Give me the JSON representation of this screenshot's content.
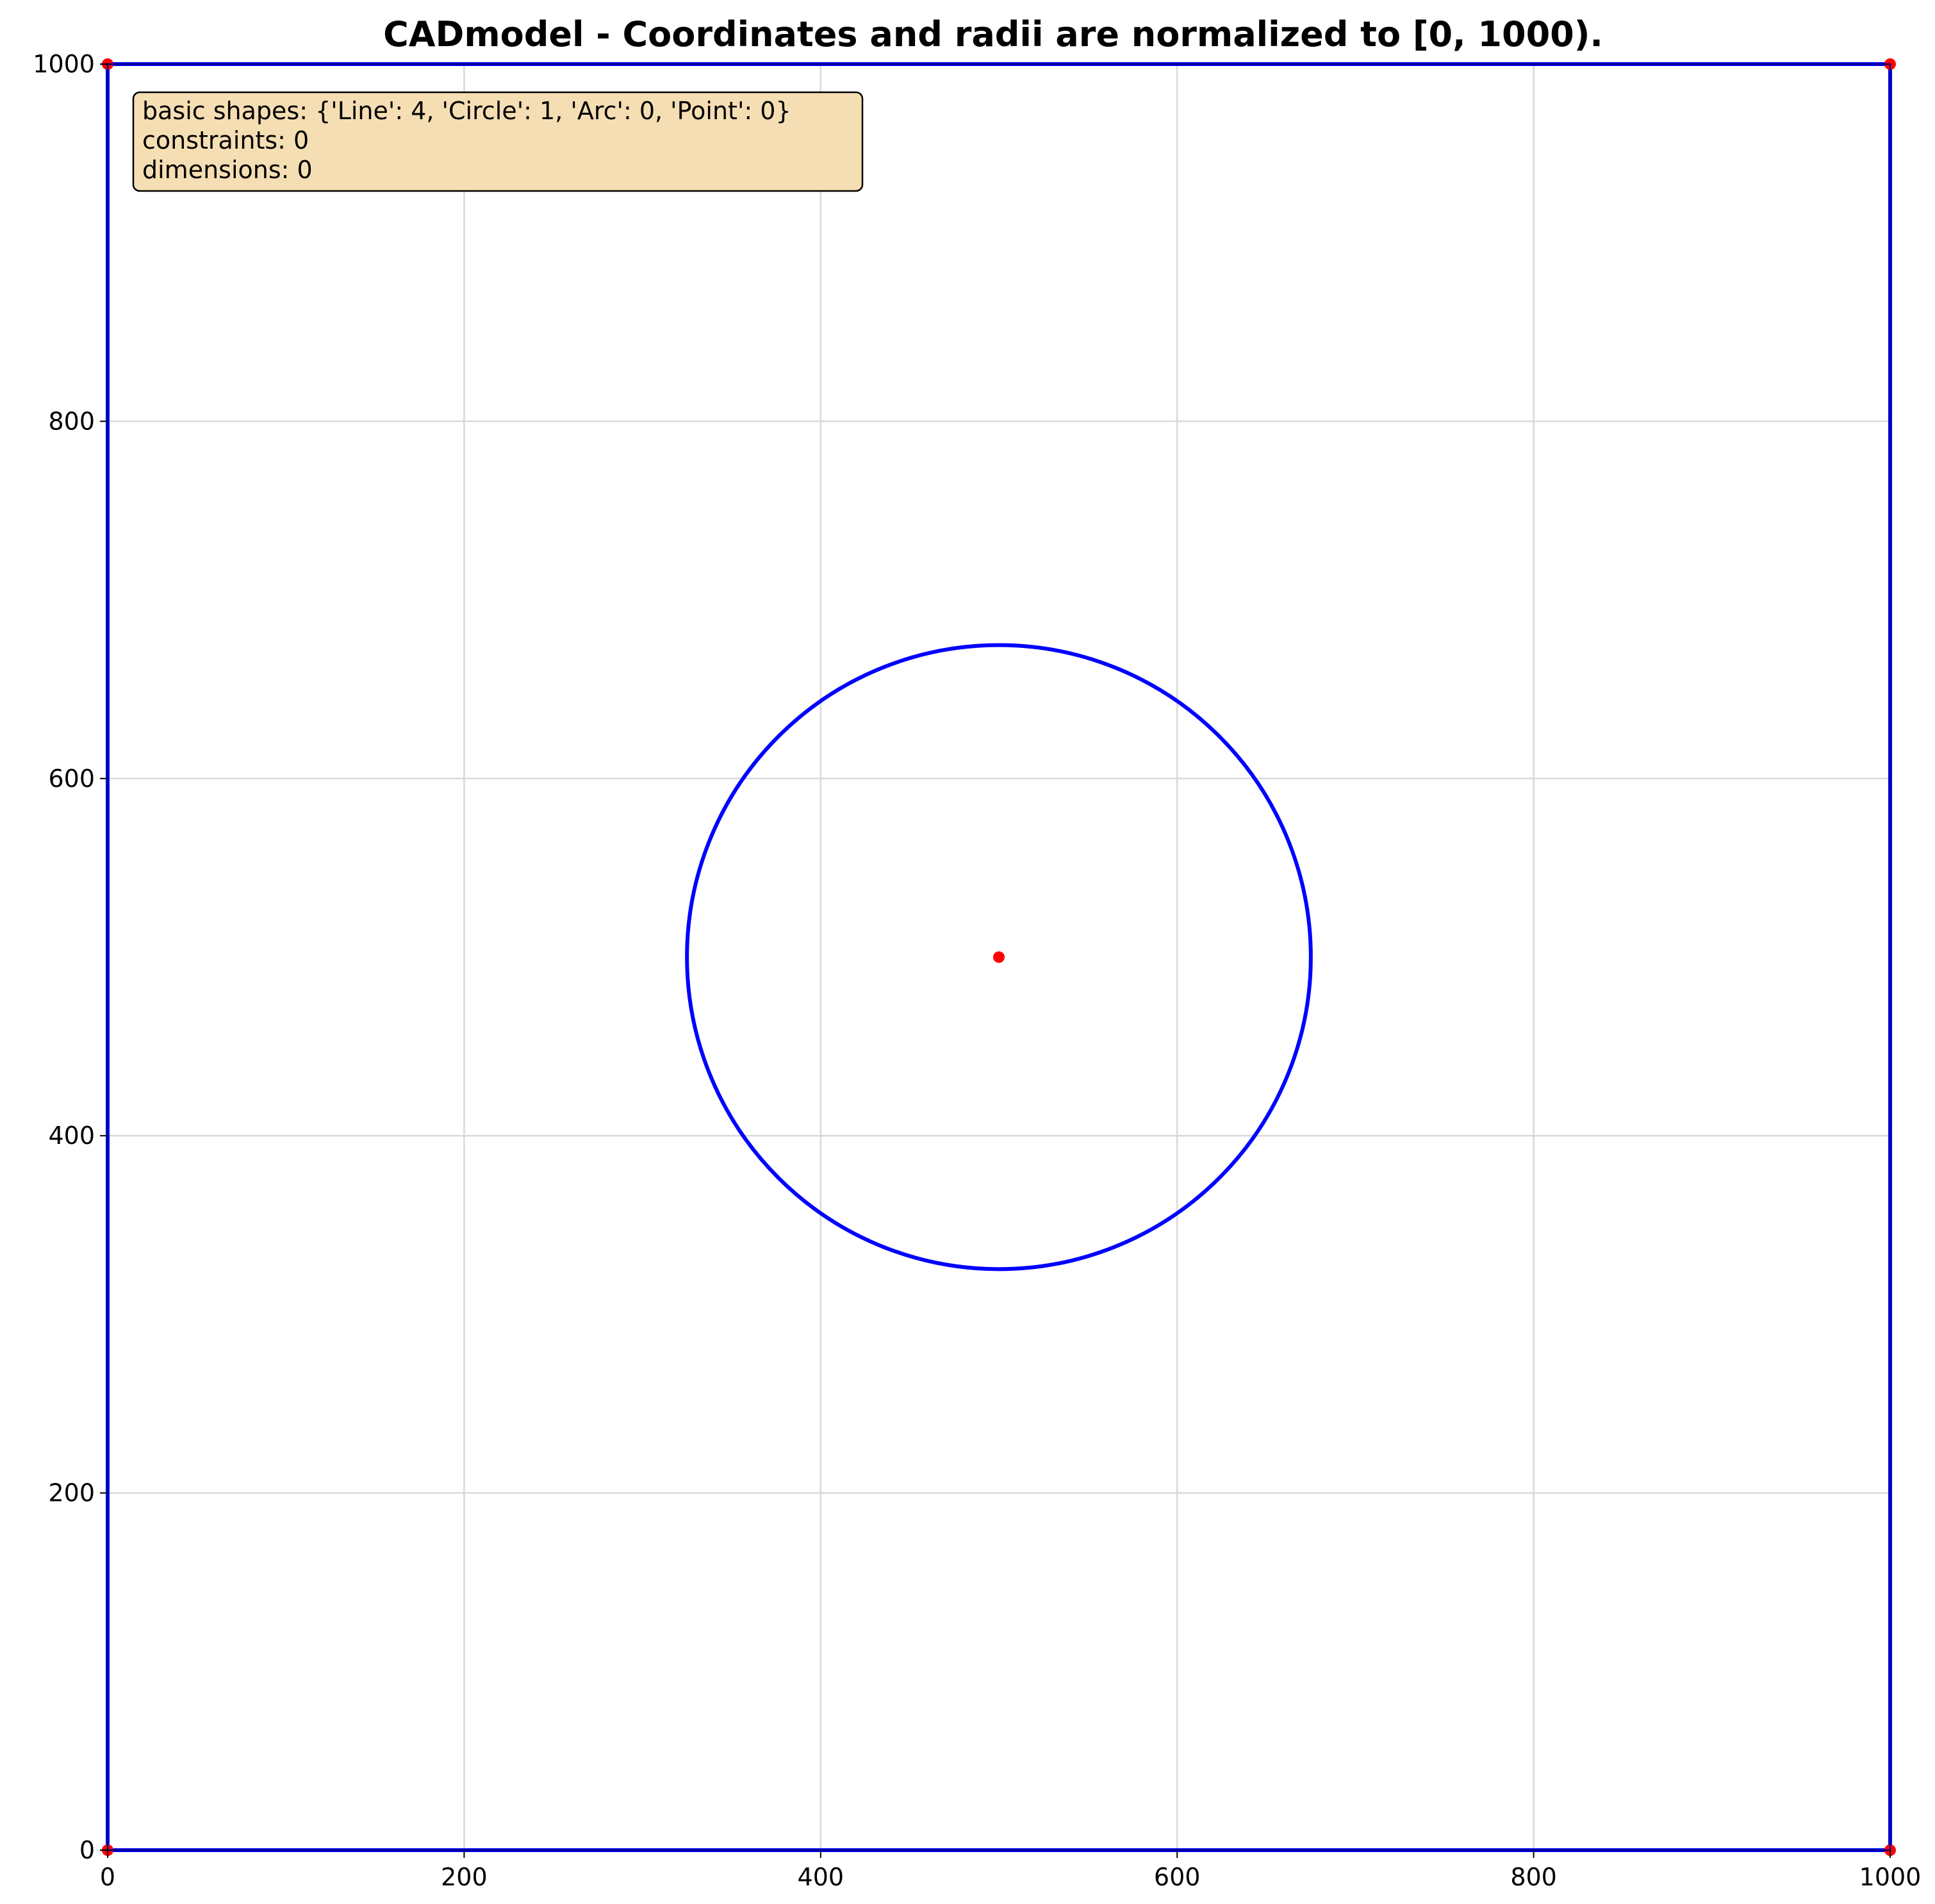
{
  "title": "CADmodel - Coordinates and radii are normalized to [0, 1000).",
  "info_box": {
    "lines": [
      "basic shapes: {'Line': 4, 'Circle': 1, 'Arc': 0, 'Point': 0}",
      "constraints: 0",
      "dimensions: 0"
    ],
    "background": "#f5deb3",
    "border": "#000000"
  },
  "chart_data": {
    "type": "scatter",
    "xlim": [
      0,
      1000
    ],
    "ylim": [
      0,
      1000
    ],
    "grid": true,
    "x_ticks": [
      0,
      200,
      400,
      600,
      800,
      1000
    ],
    "y_ticks": [
      0,
      200,
      400,
      600,
      800,
      1000
    ],
    "x_tick_labels": [
      "0",
      "200",
      "400",
      "600",
      "800",
      "1000"
    ],
    "y_tick_labels": [
      "0",
      "200",
      "400",
      "600",
      "800",
      "1000"
    ],
    "lines": [
      {
        "x1": 0,
        "y1": 0,
        "x2": 1000,
        "y2": 0
      },
      {
        "x1": 1000,
        "y1": 0,
        "x2": 1000,
        "y2": 1000
      },
      {
        "x1": 1000,
        "y1": 1000,
        "x2": 0,
        "y2": 1000
      },
      {
        "x1": 0,
        "y1": 1000,
        "x2": 0,
        "y2": 0
      }
    ],
    "circles": [
      {
        "cx": 500,
        "cy": 500,
        "r": 175
      }
    ],
    "points": [
      {
        "x": 0,
        "y": 0
      },
      {
        "x": 1000,
        "y": 0
      },
      {
        "x": 1000,
        "y": 1000
      },
      {
        "x": 0,
        "y": 1000
      },
      {
        "x": 500,
        "y": 500
      }
    ],
    "colors": {
      "shape": "#0000ff",
      "point": "#ff0000",
      "axes": "#000080"
    }
  }
}
